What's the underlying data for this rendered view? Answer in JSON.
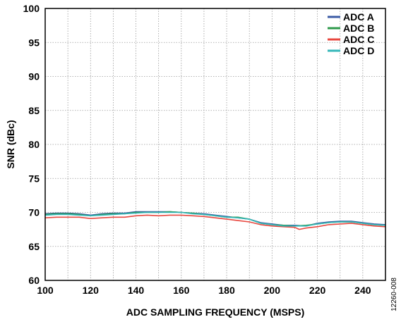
{
  "chart_data": {
    "type": "line",
    "title": "",
    "xlabel": "ADC SAMPLING FREQUENCY (MSPS)",
    "ylabel": "SNR (dBc)",
    "xlim": [
      100,
      250
    ],
    "ylim": [
      60,
      100
    ],
    "x_ticks": [
      100,
      120,
      140,
      160,
      180,
      200,
      220,
      240
    ],
    "y_ticks": [
      60,
      65,
      70,
      75,
      80,
      85,
      90,
      95,
      100
    ],
    "grid": true,
    "legend_position": "top-right",
    "figure_id": "12260-008",
    "series": [
      {
        "name": "ADC A",
        "color": "#3b5ba5",
        "x": [
          100,
          105,
          110,
          115,
          120,
          125,
          130,
          135,
          140,
          145,
          150,
          155,
          160,
          165,
          170,
          175,
          180,
          185,
          190,
          195,
          200,
          205,
          210,
          215,
          220,
          225,
          230,
          235,
          240,
          245,
          250
        ],
        "y": [
          69.8,
          69.9,
          69.9,
          69.8,
          69.6,
          69.8,
          69.9,
          69.9,
          70.1,
          70.1,
          70.1,
          70.1,
          70.0,
          69.9,
          69.8,
          69.6,
          69.4,
          69.2,
          69.0,
          68.5,
          68.3,
          68.1,
          68.1,
          68.0,
          68.4,
          68.6,
          68.7,
          68.7,
          68.5,
          68.3,
          68.2
        ]
      },
      {
        "name": "ADC B",
        "color": "#2e9a4b",
        "x": [
          100,
          105,
          110,
          115,
          120,
          125,
          130,
          135,
          140,
          145,
          150,
          155,
          160,
          165,
          170,
          175,
          180,
          185,
          190,
          195,
          200,
          205,
          210,
          215,
          220,
          225,
          230,
          235,
          240,
          245,
          250
        ],
        "y": [
          69.7,
          69.8,
          69.8,
          69.7,
          69.5,
          69.7,
          69.8,
          69.8,
          70.0,
          70.0,
          70.0,
          70.1,
          70.0,
          69.9,
          69.7,
          69.5,
          69.3,
          69.3,
          69.0,
          68.4,
          68.2,
          68.1,
          68.0,
          68.1,
          68.3,
          68.5,
          68.6,
          68.6,
          68.4,
          68.2,
          68.1
        ]
      },
      {
        "name": "ADC C",
        "color": "#e8473f",
        "x": [
          100,
          105,
          110,
          115,
          120,
          125,
          130,
          135,
          140,
          145,
          150,
          155,
          160,
          165,
          170,
          175,
          180,
          185,
          190,
          195,
          200,
          205,
          210,
          212,
          215,
          220,
          225,
          230,
          235,
          240,
          245,
          250
        ],
        "y": [
          69.2,
          69.3,
          69.3,
          69.3,
          69.1,
          69.2,
          69.3,
          69.3,
          69.5,
          69.6,
          69.5,
          69.6,
          69.6,
          69.5,
          69.4,
          69.2,
          69.0,
          68.8,
          68.6,
          68.2,
          68.0,
          67.9,
          67.8,
          67.5,
          67.7,
          67.9,
          68.2,
          68.3,
          68.4,
          68.2,
          68.0,
          67.9
        ]
      },
      {
        "name": "ADC D",
        "color": "#35b7b9",
        "x": [
          100,
          105,
          110,
          115,
          120,
          125,
          130,
          135,
          140,
          145,
          150,
          155,
          160,
          165,
          170,
          175,
          180,
          185,
          190,
          195,
          200,
          205,
          210,
          215,
          220,
          225,
          230,
          235,
          240,
          245,
          250
        ],
        "y": [
          69.6,
          69.7,
          69.7,
          69.6,
          69.5,
          69.6,
          69.7,
          69.8,
          69.9,
          70.0,
          70.0,
          70.0,
          70.0,
          69.8,
          69.7,
          69.5,
          69.3,
          69.2,
          69.0,
          68.4,
          68.2,
          68.0,
          68.0,
          68.0,
          68.3,
          68.5,
          68.6,
          68.6,
          68.4,
          68.2,
          68.1
        ]
      }
    ]
  }
}
